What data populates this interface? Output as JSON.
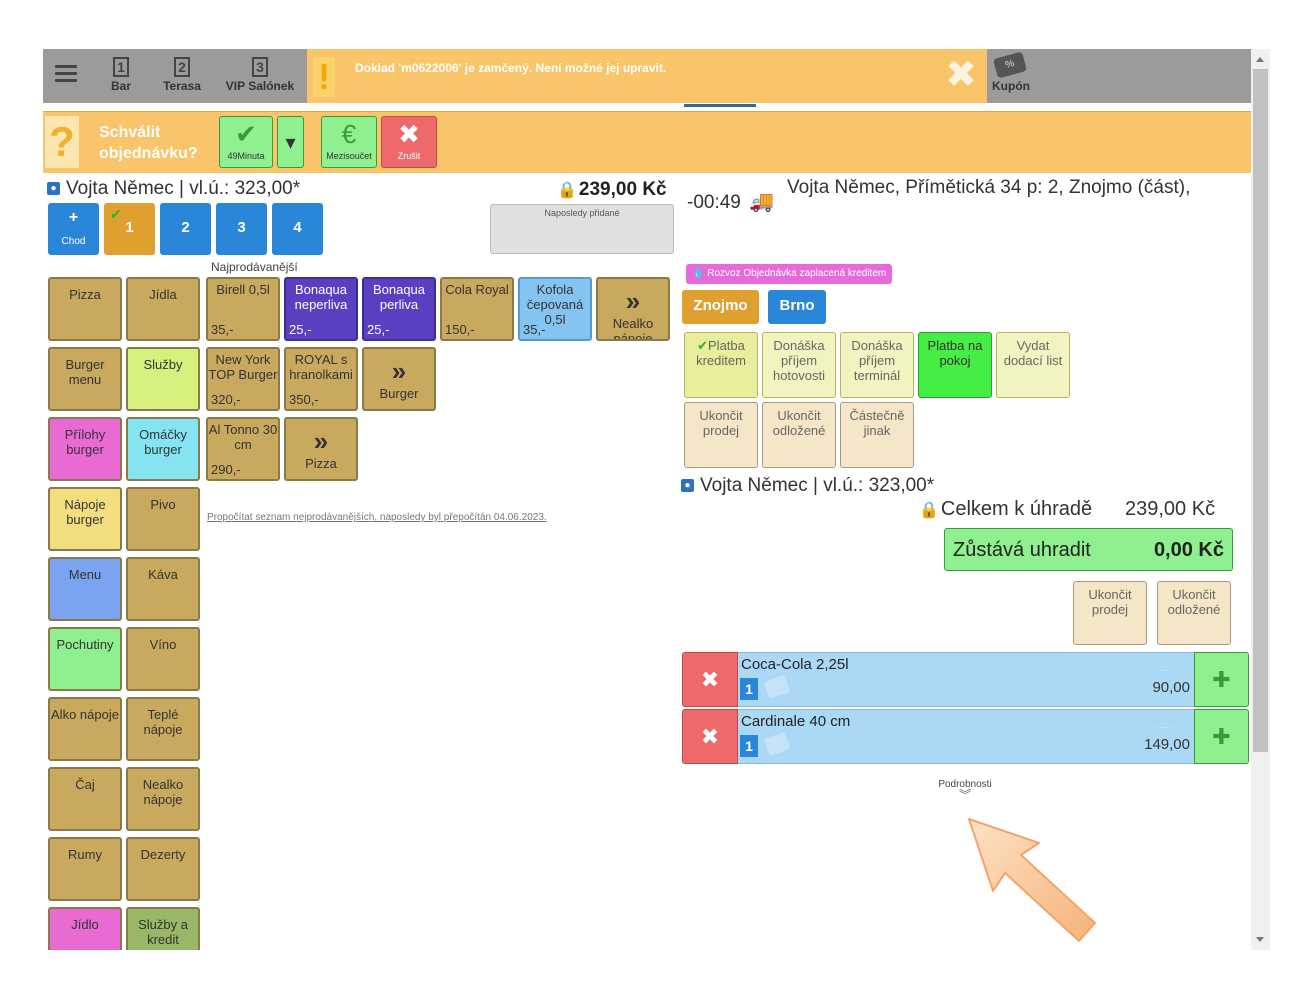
{
  "topbar": {
    "tabs": [
      {
        "num": "1",
        "label": "Bar"
      },
      {
        "num": "2",
        "label": "Terasa"
      },
      {
        "num": "3",
        "label": "VIP Salónek"
      }
    ],
    "alert_icon": "!",
    "alert_message": "Doklad 'm0622006' je zamčený. Není možné jej upravit.",
    "alert_close": "✖",
    "kupon_label": "Kupón",
    "kupon_icon_text": "%"
  },
  "approve": {
    "icon": "?",
    "question_line1": "Schválit",
    "question_line2": "objednávku?",
    "confirm_icon": "✔",
    "confirm_label": "49Minuta",
    "dropdown_icon": "▾",
    "subtotal_icon": "€",
    "subtotal_label": "Mezisoučet",
    "cancel_icon": "✖",
    "cancel_label": "Zrušit"
  },
  "customer": {
    "name_line": "Vojta Němec | vl.ú.: 323,00*",
    "total": "239,00 Kč",
    "last_added_label": "Naposledy přidané"
  },
  "courses": [
    {
      "top": "+",
      "label": "Chod"
    },
    {
      "check": "✔",
      "label": "1"
    },
    {
      "label": "2"
    },
    {
      "label": "3"
    },
    {
      "label": "4"
    }
  ],
  "bestsellers_label": "Najprodávanější",
  "recalc_text": "Propočítat seznam nejprodávanějších, naposledy byl přepočítán 04.06.2023.",
  "categories": [
    "Pizza",
    "Jídla",
    "Burger menu",
    "Služby",
    "Přílohy burger",
    "Omáčky burger",
    "Nápoje burger",
    "Pivo",
    "Menu",
    "Káva",
    "Pochutiny",
    "Víno",
    "Alko nápoje",
    "Teplé nápoje",
    "Čaj",
    "Nealko nápoje",
    "Rumy",
    "Dezerty",
    "Jídlo",
    "Služby a kredit"
  ],
  "products": [
    {
      "name": "Birell 0,5l",
      "price": "35,-"
    },
    {
      "name": "Bonaqua neperliva",
      "price": "25,-"
    },
    {
      "name": "Bonaqua perliva",
      "price": "25,-"
    },
    {
      "name": "Cola Royal",
      "price": "150,-"
    },
    {
      "name": "Kofola čepovaná 0,5l",
      "price": "35,-"
    },
    {
      "name": "Nealko nápoje",
      "more": "»"
    },
    {
      "name": "New York TOP Burger",
      "price": "320,-"
    },
    {
      "name": "ROYAL s hranolkami",
      "price": "350,-"
    },
    {
      "name": "Burger",
      "more": "»"
    },
    {
      "name": "Al Tonno 30 cm",
      "price": "290,-"
    },
    {
      "name": "Pizza",
      "more": "»"
    }
  ],
  "delivery": {
    "time": "-00:49",
    "truck_icon": "🚚",
    "address": "Vojta Němec, Přímětická 34 p: 2, Znojmo (část),",
    "badge": "Rozvoz Objednávka zaplacená kreditem",
    "badge_icon": "💧",
    "cities": [
      "Znojmo",
      "Brno"
    ]
  },
  "payments": [
    {
      "check": "✔",
      "label": "Platba kreditem"
    },
    {
      "label": "Donáška příjem hotovosti"
    },
    {
      "label": "Donáška příjem terminál"
    },
    {
      "label": "Platba na pokoj"
    },
    {
      "label": "Vydat dodací list"
    },
    {
      "label": "Ukončit prodej"
    },
    {
      "label": "Ukončit odložené"
    },
    {
      "label": "Částečně jinak"
    }
  ],
  "summary": {
    "customer_line": "Vojta Němec | vl.ú.: 323,00*",
    "total_label": "Celkem k úhradě",
    "total_amount": "239,00 Kč",
    "remaining_label": "Zůstává uhradit",
    "remaining_amount": "0,00 Kč",
    "finish_label": "Ukončit prodej",
    "postponed_label": "Ukončit odložené"
  },
  "order_lines": [
    {
      "name": "Coca-Cola 2,25l",
      "qty": "1",
      "price": "90,00",
      "del_icon": "✖",
      "add_icon": "✚"
    },
    {
      "name": "Cardinale 40 cm",
      "qty": "1",
      "price": "149,00",
      "del_icon": "✖",
      "add_icon": "✚"
    }
  ],
  "details_label": "Podrobnosti",
  "details_icon": "︾",
  "colors": {
    "orange": "#f9c46a",
    "blue": "#2a86d8",
    "tan": "#c9a95e",
    "purple": "#5a3fc0",
    "green": "#8ef08e",
    "red": "#ee6a6a",
    "lightblue": "#aad8f5"
  }
}
